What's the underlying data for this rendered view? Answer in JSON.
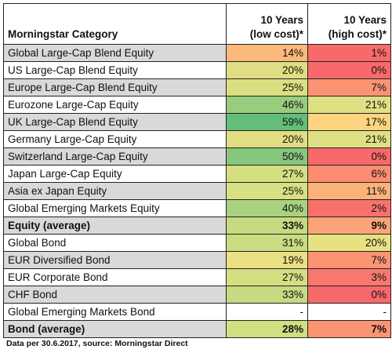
{
  "table": {
    "headers": {
      "category": "Morningstar Category",
      "low_line1": "10 Years",
      "low_line2": "(low cost)*",
      "high_line1": "10 Years",
      "high_line2": "(high cost)*"
    },
    "rows": [
      {
        "category": "Global Large-Cap Blend Equity",
        "low": "14%",
        "high": "1%",
        "bold": false,
        "cat_bg": "#d9d9d9",
        "low_bg": "#fbb97a",
        "high_bg": "#f8696b"
      },
      {
        "category": "US Large-Cap Blend Equity",
        "low": "20%",
        "high": "0%",
        "bold": false,
        "cat_bg": "#ffffff",
        "low_bg": "#e0dd82",
        "high_bg": "#f8696b"
      },
      {
        "category": "Europe Large-Cap Blend Equity",
        "low": "25%",
        "high": "7%",
        "bold": false,
        "cat_bg": "#d9d9d9",
        "low_bg": "#d9e082",
        "high_bg": "#fa9473"
      },
      {
        "category": "Eurozone Large-Cap Equity",
        "low": "46%",
        "high": "21%",
        "bold": false,
        "cat_bg": "#ffffff",
        "low_bg": "#98cd7e",
        "high_bg": "#dfe083"
      },
      {
        "category": "UK Large-Cap Blend Equity",
        "low": "59%",
        "high": "17%",
        "bold": false,
        "cat_bg": "#d9d9d9",
        "low_bg": "#63be7b",
        "high_bg": "#fdd580"
      },
      {
        "category": "Germany Large-Cap Equity",
        "low": "20%",
        "high": "21%",
        "bold": false,
        "cat_bg": "#ffffff",
        "low_bg": "#e0dd82",
        "high_bg": "#dfe083"
      },
      {
        "category": "Switzerland Large-Cap Equity",
        "low": "50%",
        "high": "0%",
        "bold": false,
        "cat_bg": "#d9d9d9",
        "low_bg": "#86c77d",
        "high_bg": "#f8696b"
      },
      {
        "category": "Japan Large-Cap Equity",
        "low": "27%",
        "high": "6%",
        "bold": false,
        "cat_bg": "#ffffff",
        "low_bg": "#d4df82",
        "high_bg": "#fa8d72"
      },
      {
        "category": "Asia ex Japan Equity",
        "low": "25%",
        "high": "11%",
        "bold": false,
        "cat_bg": "#d9d9d9",
        "low_bg": "#d9e082",
        "high_bg": "#fbb279"
      },
      {
        "category": "Global Emerging Markets Equity",
        "low": "40%",
        "high": "2%",
        "bold": false,
        "cat_bg": "#ffffff",
        "low_bg": "#a9d27f",
        "high_bg": "#f8716c"
      },
      {
        "category": "Equity (average)",
        "low": "33%",
        "high": "9%",
        "bold": true,
        "cat_bg": "#d9d9d9",
        "low_bg": "#c5da81",
        "high_bg": "#fba477"
      },
      {
        "category": "Global Bond",
        "low": "31%",
        "high": "20%",
        "bold": false,
        "cat_bg": "#ffffff",
        "low_bg": "#cadc81",
        "high_bg": "#e8e182"
      },
      {
        "category": "EUR Diversified Bond",
        "low": "19%",
        "high": "7%",
        "bold": false,
        "cat_bg": "#d9d9d9",
        "low_bg": "#ebe083",
        "high_bg": "#fa9473"
      },
      {
        "category": "EUR Corporate Bond",
        "low": "27%",
        "high": "3%",
        "bold": false,
        "cat_bg": "#ffffff",
        "low_bg": "#d4df82",
        "high_bg": "#f9786d"
      },
      {
        "category": "CHF Bond",
        "low": "33%",
        "high": "0%",
        "bold": false,
        "cat_bg": "#d9d9d9",
        "low_bg": "#c5da81",
        "high_bg": "#f8696b"
      },
      {
        "category": "Global Emerging Markets Bond",
        "low": "-",
        "high": "-",
        "bold": false,
        "cat_bg": "#ffffff",
        "low_bg": "#ffffff",
        "high_bg": "#ffffff"
      },
      {
        "category": "Bond (average)",
        "low": "28%",
        "high": "7%",
        "bold": true,
        "cat_bg": "#d9d9d9",
        "low_bg": "#d1de81",
        "high_bg": "#fa9473"
      }
    ]
  },
  "footnote": "Data per 30.6.2017, source: Morningstar Direct"
}
